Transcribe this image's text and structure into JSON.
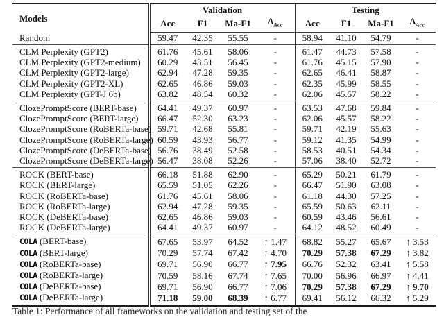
{
  "table": {
    "header": {
      "models": "Models",
      "groups": [
        {
          "label": "Validation"
        },
        {
          "label": "Testing"
        }
      ],
      "metric_cols": [
        "Acc",
        "F1",
        "Ma-F1"
      ],
      "delta_main": "Δ",
      "delta_sub": "Acc"
    },
    "sections": [
      {
        "name": "random",
        "rows": [
          {
            "tt": "",
            "label": "Random",
            "cells": [
              "59.47",
              "42.35",
              "55.55",
              "-",
              "58.94",
              "41.10",
              "54.79",
              "-"
            ],
            "bold": []
          }
        ]
      },
      {
        "name": "clm-perplexity",
        "rows": [
          {
            "tt": "",
            "label": "CLM Perplexity (GPT2)",
            "cells": [
              "61.76",
              "45.61",
              "58.06",
              "-",
              "61.47",
              "44.73",
              "57.58",
              "-"
            ],
            "bold": []
          },
          {
            "tt": "",
            "label": "CLM Perplexity (GPT2-medium)",
            "cells": [
              "60.29",
              "43.51",
              "56.45",
              "-",
              "61.76",
              "45.15",
              "57.90",
              "-"
            ],
            "bold": []
          },
          {
            "tt": "",
            "label": "CLM Perplexity (GPT2-large)",
            "cells": [
              "62.94",
              "47.28",
              "59.35",
              "-",
              "62.65",
              "46.41",
              "58.87",
              "-"
            ],
            "bold": []
          },
          {
            "tt": "",
            "label": "CLM Perplexity (GPT2-XL)",
            "cells": [
              "62.65",
              "46.86",
              "59.03",
              "-",
              "62.35",
              "45.99",
              "58.55",
              "-"
            ],
            "bold": []
          },
          {
            "tt": "",
            "label": "CLM Perplexity (GPT-J 6b)",
            "cells": [
              "63.82",
              "48.54",
              "60.32",
              "-",
              "62.06",
              "45.57",
              "58.22",
              "-"
            ],
            "bold": []
          }
        ]
      },
      {
        "name": "cloze-prompt-score",
        "rows": [
          {
            "tt": "",
            "label": "ClozePromptScore (BERT-base)",
            "cells": [
              "64.41",
              "49.37",
              "60.97",
              "-",
              "63.53",
              "47.68",
              "59.84",
              "-"
            ],
            "bold": []
          },
          {
            "tt": "",
            "label": "ClozePromptScore (BERT-large)",
            "cells": [
              "66.47",
              "52.30",
              "63.23",
              "-",
              "62.06",
              "45.57",
              "58.22",
              "-"
            ],
            "bold": []
          },
          {
            "tt": "",
            "label": "ClozePromptScore (RoBERTa-base)",
            "cells": [
              "59.71",
              "42.68",
              "55.81",
              "-",
              "59.71",
              "42.19",
              "55.63",
              "-"
            ],
            "bold": []
          },
          {
            "tt": "",
            "label": "ClozePromptScore (RoBERTa-large)",
            "cells": [
              "60.59",
              "43.93",
              "56.77",
              "-",
              "59.12",
              "41.35",
              "54.99",
              "-"
            ],
            "bold": []
          },
          {
            "tt": "",
            "label": "ClozePromptScore (DeBERTa-base)",
            "cells": [
              "56.76",
              "38.49",
              "52.58",
              "-",
              "58.53",
              "40.51",
              "54.34",
              "-"
            ],
            "bold": []
          },
          {
            "tt": "",
            "label": "ClozePromptScore (DeBERTa-large)",
            "cells": [
              "56.47",
              "38.08",
              "52.26",
              "-",
              "57.06",
              "38.40",
              "52.72",
              "-"
            ],
            "bold": []
          }
        ]
      },
      {
        "name": "rock",
        "rows": [
          {
            "tt": "",
            "label": "ROCK (BERT-base)",
            "cells": [
              "66.18",
              "51.88",
              "62.90",
              "-",
              "65.29",
              "50.21",
              "61.79",
              "-"
            ],
            "bold": []
          },
          {
            "tt": "",
            "label": "ROCK (BERT-large)",
            "cells": [
              "65.59",
              "51.05",
              "62.26",
              "-",
              "66.47",
              "51.90",
              "63.08",
              "-"
            ],
            "bold": []
          },
          {
            "tt": "",
            "label": "ROCK (RoBERTa-base)",
            "cells": [
              "61.76",
              "45.61",
              "58.06",
              "-",
              "61.18",
              "44.30",
              "57.25",
              "-"
            ],
            "bold": []
          },
          {
            "tt": "",
            "label": "ROCK (RoBERTa-large)",
            "cells": [
              "62.94",
              "47.28",
              "59.35",
              "-",
              "65.59",
              "50.63",
              "62.11",
              "-"
            ],
            "bold": []
          },
          {
            "tt": "",
            "label": "ROCK (DeBERTa-base)",
            "cells": [
              "62.65",
              "46.86",
              "59.03",
              "-",
              "60.59",
              "43.46",
              "56.61",
              "-"
            ],
            "bold": []
          },
          {
            "tt": "",
            "label": "ROCK (DeBERTa-large)",
            "cells": [
              "64.41",
              "49.37",
              "60.97",
              "-",
              "64.12",
              "48.52",
              "60.49",
              "-"
            ],
            "bold": []
          }
        ]
      },
      {
        "name": "cola",
        "rows": [
          {
            "tt": "COLA",
            "label": " (BERT-base)",
            "cells": [
              "67.65",
              "53.97",
              "64.52",
              "↑ 1.47",
              "68.82",
              "55.27",
              "65.67",
              "↑ 3.53"
            ],
            "bold": []
          },
          {
            "tt": "COLA",
            "label": " (BERT-large)",
            "cells": [
              "70.29",
              "57.74",
              "67.42",
              "↑ 4.70",
              "70.29",
              "57.38",
              "67.29",
              "↑ 3.82"
            ],
            "bold": [
              4,
              5,
              6
            ]
          },
          {
            "tt": "COLA",
            "label": " (RoBERTa-base)",
            "cells": [
              "69.71",
              "56.90",
              "66.77",
              "↑ 7.95",
              "66.76",
              "52.32",
              "63.41",
              "↑ 5.58"
            ],
            "bold": [
              3
            ]
          },
          {
            "tt": "COLA",
            "label": " (RoBERTa-large)",
            "cells": [
              "70.59",
              "58.16",
              "67.74",
              "↑ 7.65",
              "70.00",
              "56.96",
              "66.97",
              "↑ 4.41"
            ],
            "bold": []
          },
          {
            "tt": "COLA",
            "label": " (DeBERTa-base)",
            "cells": [
              "69.71",
              "56.90",
              "66.77",
              "↑ 7.06",
              "70.29",
              "57.38",
              "67.29",
              "↑ 9.70"
            ],
            "bold": [
              4,
              5,
              6,
              7
            ]
          },
          {
            "tt": "COLA",
            "label": " (DeBERTa-large)",
            "cells": [
              "71.18",
              "59.00",
              "68.39",
              "↑ 6.77",
              "69.41",
              "56.12",
              "66.32",
              "↑ 5.29"
            ],
            "bold": [
              0,
              1,
              2
            ]
          }
        ]
      }
    ]
  },
  "caption": {
    "text": "Table 1: Performance of all frameworks on the validation and testing set of the"
  }
}
